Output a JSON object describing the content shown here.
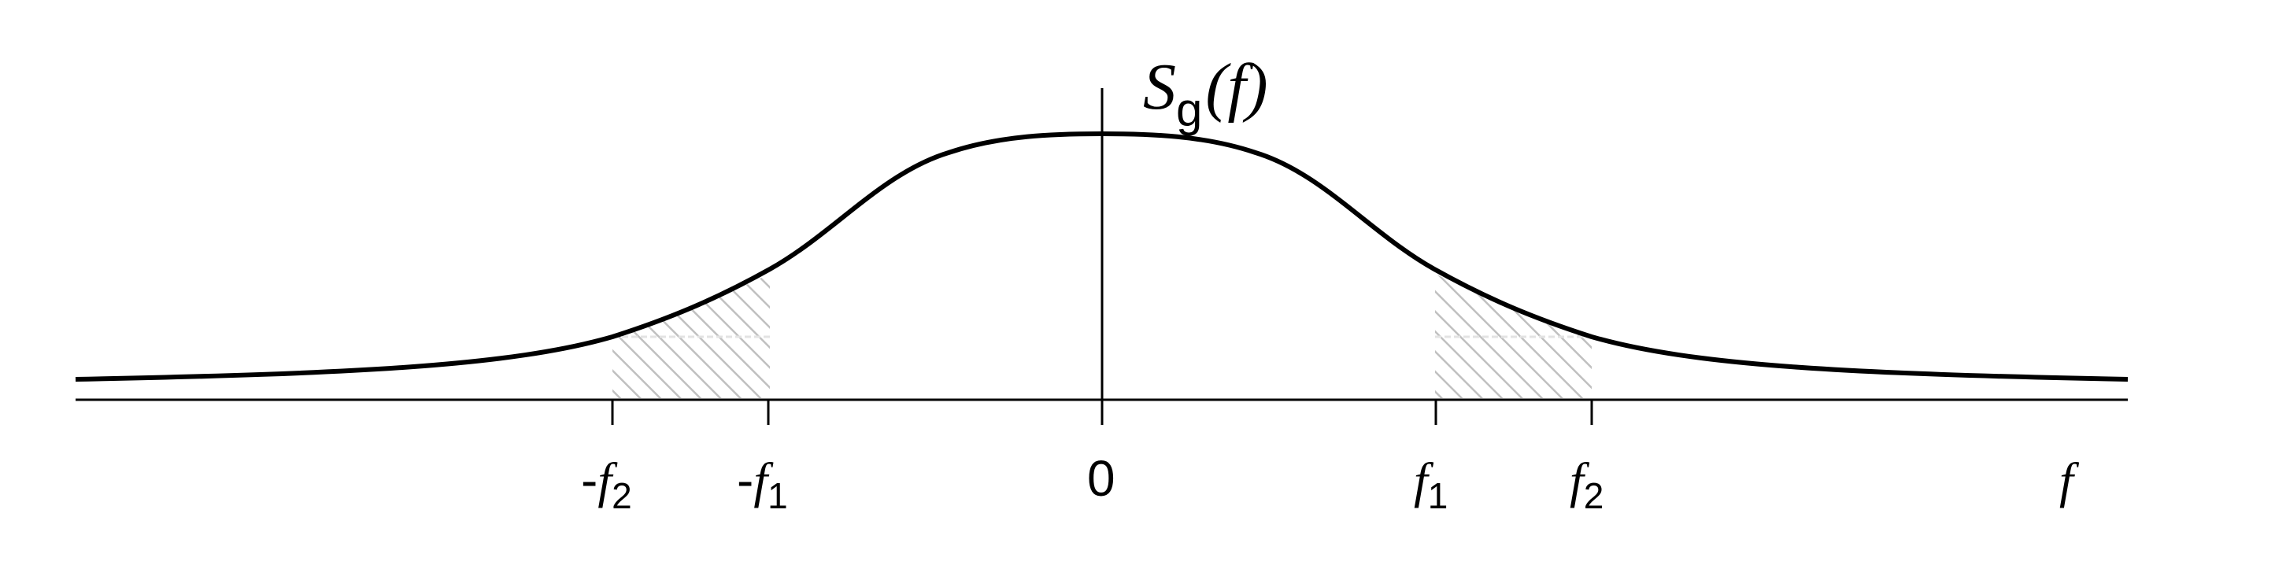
{
  "diagram": {
    "ylabel": {
      "symbol": "S",
      "subscript": "g",
      "argument": "(f)"
    },
    "xlabel": "f",
    "ticks": [
      {
        "id": "neg-f2",
        "prefix": "-",
        "symbol": "f",
        "subscript": "2"
      },
      {
        "id": "neg-f1",
        "prefix": "-",
        "symbol": "f",
        "subscript": "1"
      },
      {
        "id": "zero",
        "prefix": "",
        "symbol": "0",
        "subscript": ""
      },
      {
        "id": "f1",
        "prefix": "",
        "symbol": "f",
        "subscript": "1"
      },
      {
        "id": "f2",
        "prefix": "",
        "symbol": "f",
        "subscript": "2"
      }
    ],
    "shaded_bands": [
      {
        "from": "-f2",
        "to": "-f1"
      },
      {
        "from": "f1",
        "to": "f2"
      }
    ],
    "colors": {
      "curve": "#000000",
      "axes": "#000000",
      "hatch": "#c0c0c0"
    }
  }
}
